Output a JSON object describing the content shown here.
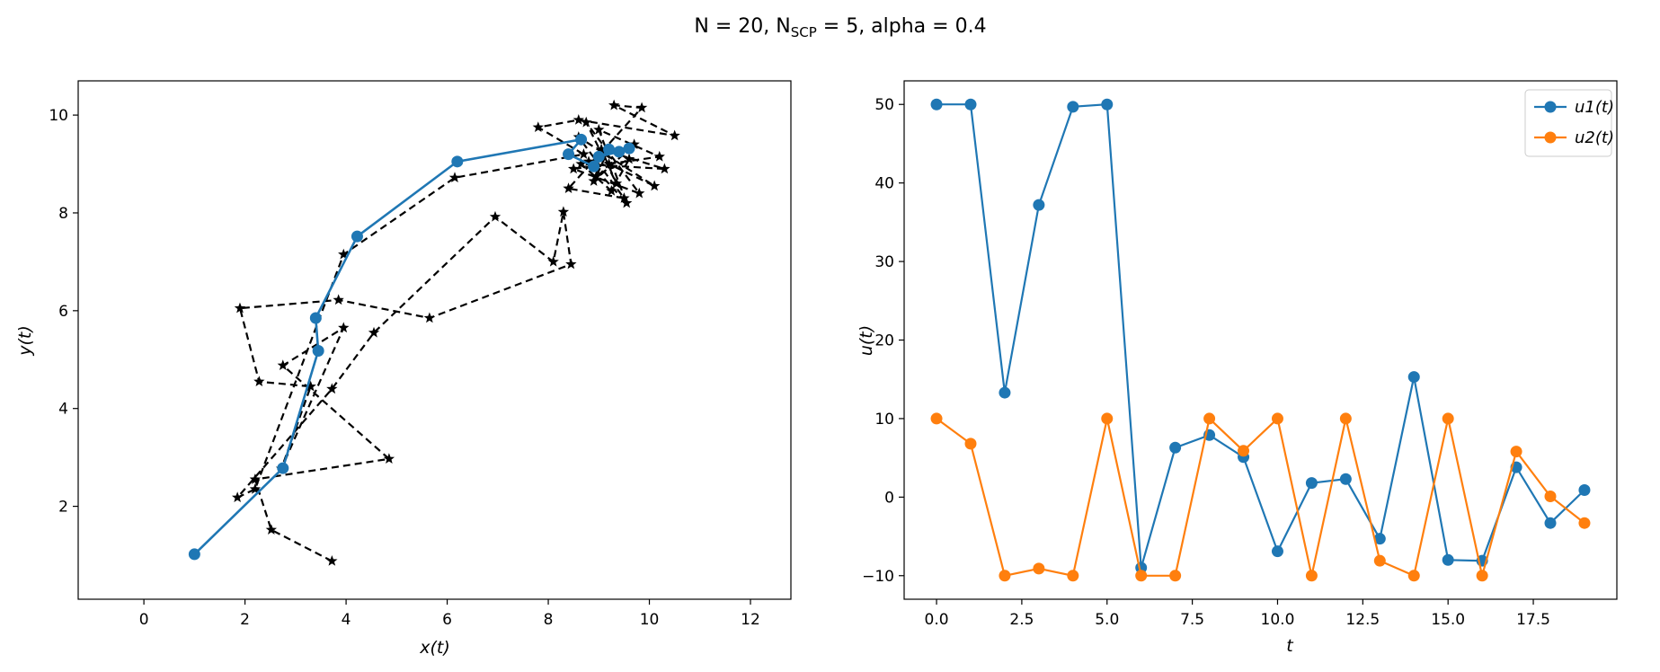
{
  "title": {
    "prefix": "N = 20, N",
    "sub": "SCP",
    "suffix": " = 5, alpha = 0.4"
  },
  "chart_data": [
    {
      "type": "line",
      "xlabel": "x(t)",
      "ylabel": "y(t)",
      "xlim": [
        -1.3,
        12.8
      ],
      "ylim": [
        0.1,
        10.7
      ],
      "xticks": [
        "0",
        "2",
        "4",
        "6",
        "8",
        "10",
        "12"
      ],
      "yticks": [
        "2",
        "4",
        "6",
        "8",
        "10"
      ],
      "series": [
        {
          "style": "dashed-star",
          "color": "#000000",
          "x": [
            3.72,
            2.52,
            2.2,
            4.85,
            2.75,
            3.95,
            2.72,
            3.3,
            2.28,
            1.9,
            3.85,
            5.65,
            8.45,
            8.3,
            8.1,
            6.95,
            4.55,
            3.72,
            1.85,
            2.2,
            3.95,
            6.15,
            8.7,
            7.8,
            8.6,
            10.5,
            9.3,
            9.85,
            8.4,
            9.5,
            8.6,
            10.1,
            9.2,
            8.9,
            9.7,
            8.8,
            9.55,
            9.0,
            10.2,
            8.5,
            9.8,
            8.75,
            9.35,
            9.05,
            10.3,
            8.65,
            9.25,
            9.6,
            8.95,
            9.15
          ],
          "y": [
            0.88,
            1.52,
            2.55,
            2.97,
            4.88,
            5.65,
            2.77,
            4.45,
            4.55,
            6.05,
            6.22,
            5.85,
            6.95,
            8.02,
            7.0,
            7.92,
            5.55,
            4.4,
            2.18,
            2.35,
            7.15,
            8.72,
            9.2,
            9.75,
            9.9,
            9.58,
            10.2,
            10.15,
            8.5,
            8.3,
            9.55,
            8.55,
            9.0,
            8.65,
            9.4,
            9.05,
            8.2,
            9.7,
            9.15,
            8.9,
            8.4,
            9.85,
            8.6,
            9.3,
            8.9,
            9.0,
            8.45,
            9.1,
            8.75,
            9.2
          ]
        },
        {
          "style": "solid-dot",
          "color": "#1f77b4",
          "x": [
            1.0,
            2.75,
            3.45,
            3.4,
            4.22,
            6.2,
            8.65,
            8.4,
            8.9,
            9.2,
            9.6,
            9.0,
            9.4
          ],
          "y": [
            1.02,
            2.78,
            5.18,
            5.85,
            7.52,
            9.05,
            9.5,
            9.2,
            8.95,
            9.3,
            9.32,
            9.15,
            9.25
          ]
        }
      ]
    },
    {
      "type": "line",
      "xlabel": "t",
      "ylabel": "u(t)",
      "xlim": [
        -0.95,
        19.95
      ],
      "ylim": [
        -13,
        53
      ],
      "xticks": [
        "0.0",
        "2.5",
        "5.0",
        "7.5",
        "10.0",
        "12.5",
        "15.0",
        "17.5"
      ],
      "yticks": [
        "−10",
        "0",
        "10",
        "20",
        "30",
        "40",
        "50"
      ],
      "x": [
        0,
        1,
        2,
        3,
        4,
        5,
        6,
        7,
        8,
        9,
        10,
        11,
        12,
        13,
        14,
        15,
        16,
        17,
        18,
        19
      ],
      "series": [
        {
          "name": "u1(t)",
          "color": "#1f77b4",
          "values": [
            50,
            50,
            13.3,
            37.2,
            49.7,
            50,
            -9,
            6.3,
            7.9,
            5.1,
            -6.9,
            1.8,
            2.3,
            -5.3,
            15.3,
            -8,
            -8.1,
            3.8,
            -3.3,
            0.9
          ]
        },
        {
          "name": "u2(t)",
          "color": "#ff7f0e",
          "values": [
            10,
            6.8,
            -10,
            -9.1,
            -10,
            10,
            -10,
            -10,
            10,
            5.9,
            10,
            -10,
            10,
            -8.1,
            -10,
            10,
            -10,
            5.8,
            0.1,
            -3.3
          ]
        }
      ],
      "legend": "upper right"
    }
  ]
}
